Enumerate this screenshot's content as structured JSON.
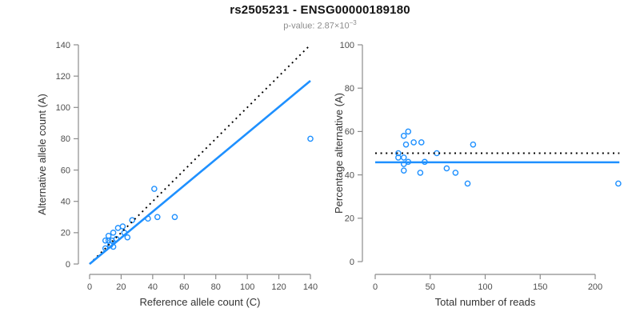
{
  "header": {
    "title": "rs2505231 - ENSG00000189180",
    "pvalue_prefix": "p-value: 2.87×10",
    "pvalue_exponent": "−3"
  },
  "colors": {
    "accent_blue": "#1E90FF",
    "dotted_black": "#000000",
    "axis_gray": "#8c8c8c",
    "tick_text": "#4d4d4d",
    "label_text": "#333333",
    "subtitle_gray": "#8d8d8d"
  },
  "chart_data": [
    {
      "type": "scatter",
      "name": "allele-counts-scatter",
      "xlabel": "Reference allele count (C)",
      "ylabel": "Alternative allele count (A)",
      "xlim": [
        0,
        140
      ],
      "ylim": [
        0,
        140
      ],
      "xticks": [
        0,
        20,
        40,
        60,
        80,
        100,
        120,
        140
      ],
      "yticks": [
        0,
        20,
        40,
        60,
        80,
        100,
        120,
        140
      ],
      "grid": false,
      "legend": "none",
      "points": [
        [
          10,
          10
        ],
        [
          15,
          11
        ],
        [
          13,
          12
        ],
        [
          10,
          15
        ],
        [
          12,
          15
        ],
        [
          14,
          15
        ],
        [
          17,
          16
        ],
        [
          24,
          17
        ],
        [
          12,
          18
        ],
        [
          15,
          20
        ],
        [
          22,
          20
        ],
        [
          18,
          23
        ],
        [
          21,
          24
        ],
        [
          27,
          28
        ],
        [
          37,
          29
        ],
        [
          43,
          30
        ],
        [
          54,
          30
        ],
        [
          41,
          48
        ],
        [
          140,
          80
        ]
      ],
      "lines": [
        {
          "name": "identity-line",
          "style": "dotted",
          "color": "#000000",
          "x": [
            0,
            140
          ],
          "y": [
            0,
            140
          ]
        },
        {
          "name": "regression-line",
          "style": "solid",
          "color": "#1E90FF",
          "x": [
            0,
            140
          ],
          "y": [
            0,
            117
          ]
        }
      ]
    },
    {
      "type": "scatter",
      "name": "percentage-alternative-scatter",
      "xlabel": "Total number of reads",
      "ylabel": "Percentage alternative (A)",
      "xlim": [
        0,
        222
      ],
      "ylim": [
        0,
        100
      ],
      "xticks": [
        0,
        50,
        100,
        150,
        200
      ],
      "yticks": [
        0,
        20,
        40,
        60,
        80,
        100
      ],
      "grid": false,
      "legend": "none",
      "points": [
        [
          21,
          50
        ],
        [
          26,
          58
        ],
        [
          30,
          60
        ],
        [
          28,
          54
        ],
        [
          35,
          55
        ],
        [
          42,
          55
        ],
        [
          89,
          54
        ],
        [
          56,
          50
        ],
        [
          21,
          48
        ],
        [
          26,
          48
        ],
        [
          30,
          46
        ],
        [
          45,
          46
        ],
        [
          26,
          45
        ],
        [
          26,
          42
        ],
        [
          41,
          41
        ],
        [
          65,
          43
        ],
        [
          73,
          41
        ],
        [
          84,
          36
        ],
        [
          221,
          36
        ]
      ],
      "lines": [
        {
          "name": "expected-percentage-line",
          "style": "dotted",
          "color": "#000000",
          "x": [
            0,
            222
          ],
          "y": [
            50,
            50
          ]
        },
        {
          "name": "mean-percentage-line",
          "style": "solid",
          "color": "#1E90FF",
          "x": [
            0,
            222
          ],
          "y": [
            45.8,
            45.8
          ]
        }
      ]
    }
  ]
}
